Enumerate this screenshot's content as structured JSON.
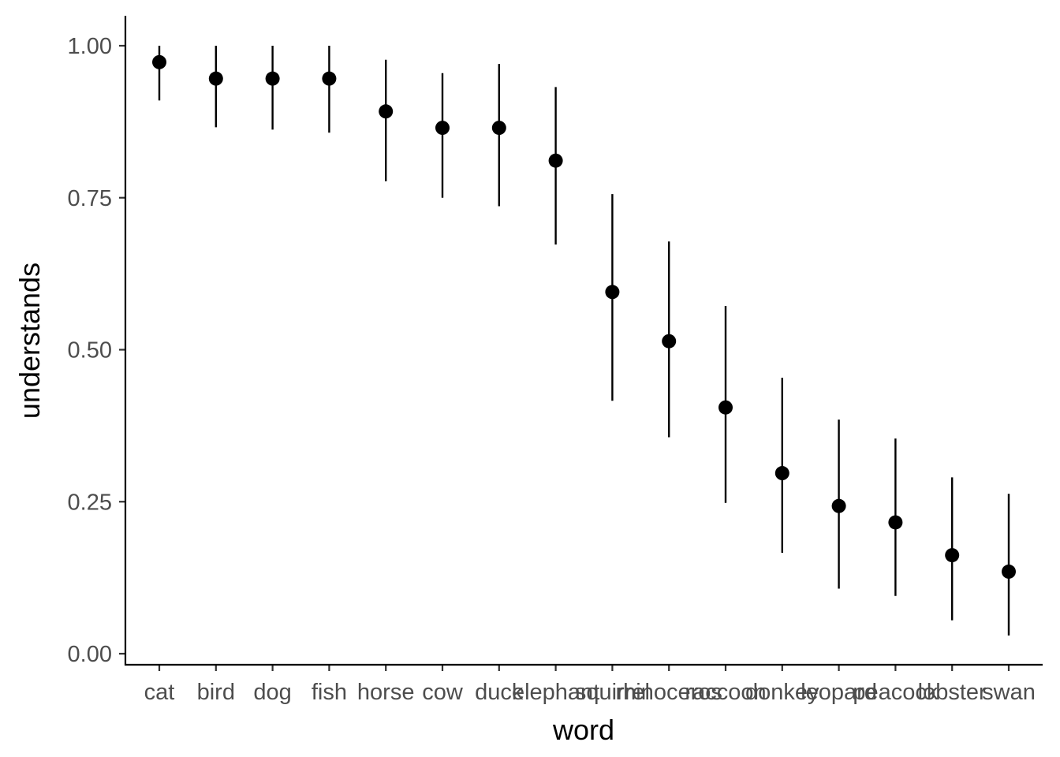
{
  "chart_data": {
    "type": "scatter",
    "xlabel": "word",
    "ylabel": "understands",
    "ylim": [
      -0.02,
      1.04
    ],
    "yticks": [
      0.0,
      0.25,
      0.5,
      0.75,
      1.0
    ],
    "ytick_labels": [
      "0.00",
      "0.25",
      "0.50",
      "0.75",
      "1.00"
    ],
    "grid": false,
    "categories": [
      "cat",
      "bird",
      "dog",
      "fish",
      "horse",
      "cow",
      "duck",
      "elephant",
      "squirrel",
      "rhinoceros",
      "raccoon",
      "donkey",
      "leopard",
      "peacock",
      "lobster",
      "swan"
    ],
    "values": [
      0.973,
      0.946,
      0.946,
      0.946,
      0.892,
      0.865,
      0.865,
      0.811,
      0.595,
      0.514,
      0.405,
      0.297,
      0.243,
      0.216,
      0.162,
      0.135
    ],
    "lower": [
      0.91,
      0.866,
      0.862,
      0.857,
      0.777,
      0.75,
      0.736,
      0.673,
      0.416,
      0.356,
      0.248,
      0.166,
      0.107,
      0.095,
      0.055,
      0.03
    ],
    "upper": [
      1.0,
      1.0,
      1.0,
      1.0,
      0.977,
      0.955,
      0.97,
      0.932,
      0.756,
      0.678,
      0.572,
      0.454,
      0.385,
      0.354,
      0.29,
      0.263
    ]
  }
}
